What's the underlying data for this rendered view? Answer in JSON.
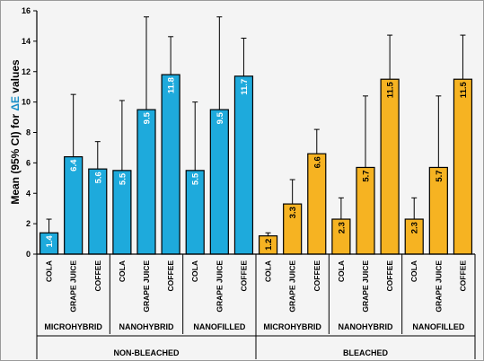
{
  "chart_data": {
    "type": "bar",
    "ylabel_prefix": "Mean (95% CI) for ",
    "ylabel_delta": "ΔE",
    "ylabel_suffix": " values",
    "ylim": [
      0,
      16
    ],
    "yticks": [
      "0",
      "2",
      "4",
      "6",
      "8",
      "10",
      "12",
      "14",
      "16"
    ],
    "grid": false,
    "colors": {
      "non_bleached": "#1eaadc",
      "bleached": "#f6b322",
      "label_non_bleached": "#ffffff",
      "label_bleached": "#000000"
    },
    "top_groups": [
      "NON-BLEACHED",
      "BLEACHED"
    ],
    "sub_groups": [
      "MICROHYBRID",
      "NANOHYBRID",
      "NANOFILLED"
    ],
    "categories": [
      "COLA",
      "GRAPE JUICE",
      "COFFEE"
    ],
    "series": [
      {
        "group": "NON-BLEACHED",
        "sub": "MICROHYBRID",
        "values": [
          1.4,
          6.4,
          5.6
        ],
        "labels": [
          "1.4",
          "6.4",
          "5.6"
        ],
        "ci_upper": [
          2.3,
          10.5,
          7.4
        ]
      },
      {
        "group": "NON-BLEACHED",
        "sub": "NANOHYBRID",
        "values": [
          5.5,
          9.5,
          11.8
        ],
        "labels": [
          "5.5",
          "9.5",
          "11.8"
        ],
        "ci_upper": [
          10.1,
          15.6,
          14.3
        ]
      },
      {
        "group": "NON-BLEACHED",
        "sub": "NANOFILLED",
        "values": [
          5.5,
          9.5,
          11.7
        ],
        "labels": [
          "5.5",
          "9.5",
          "11.7"
        ],
        "ci_upper": [
          10.0,
          15.6,
          14.2
        ]
      },
      {
        "group": "BLEACHED",
        "sub": "MICROHYBRID",
        "values": [
          1.2,
          3.3,
          6.6
        ],
        "labels": [
          "1.2",
          "3.3",
          "6.6"
        ],
        "ci_upper": [
          1.4,
          4.9,
          8.2
        ]
      },
      {
        "group": "BLEACHED",
        "sub": "NANOHYBRID",
        "values": [
          2.3,
          5.7,
          11.5
        ],
        "labels": [
          "2.3",
          "5.7",
          "11.5"
        ],
        "ci_upper": [
          3.7,
          10.4,
          14.4
        ]
      },
      {
        "group": "BLEACHED",
        "sub": "NANOFILLED",
        "values": [
          2.3,
          5.7,
          11.5
        ],
        "labels": [
          "2.3",
          "5.7",
          "11.5"
        ],
        "ci_upper": [
          3.7,
          10.4,
          14.4
        ]
      }
    ]
  }
}
